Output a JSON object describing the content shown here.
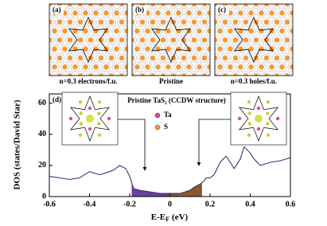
{
  "chart_data": {
    "type": "line",
    "ylabel": "DOS (states/David Star)",
    "xlabel": {
      "main": "E-E",
      "sub": "F",
      "unit": "(eV)"
    },
    "xlim": [
      -0.6,
      0.6
    ],
    "xticks": [
      -0.6,
      -0.4,
      -0.2,
      0.0,
      0.2,
      0.4,
      0.6
    ],
    "ylim": [
      0,
      66
    ],
    "yticks": [
      0,
      20,
      40,
      60
    ],
    "series": [
      {
        "color": "#4b2a7a",
        "x": [
          -0.6,
          -0.55,
          -0.5,
          -0.45,
          -0.4,
          -0.35,
          -0.3,
          -0.28,
          -0.25,
          -0.22,
          -0.2,
          -0.19,
          -0.18,
          -0.15,
          -0.1,
          -0.05,
          0,
          0.05,
          0.1,
          0.12,
          0.15,
          0.17,
          0.18,
          0.2,
          0.22,
          0.25,
          0.28,
          0.3,
          0.32,
          0.35,
          0.37,
          0.4,
          0.42,
          0.45,
          0.5,
          0.55,
          0.6
        ],
        "values": [
          13,
          12,
          11,
          12,
          16,
          14,
          16,
          17,
          20,
          18,
          13,
          9,
          5,
          4,
          3,
          2,
          2,
          2,
          4,
          6,
          8,
          10,
          12,
          12,
          14,
          22,
          26,
          22,
          18,
          24,
          32,
          28,
          24,
          20,
          22,
          23,
          25
        ]
      }
    ],
    "fills": [
      {
        "xrange": [
          -0.19,
          0.0
        ],
        "color": "#6a3fa0"
      },
      {
        "xrange": [
          0.0,
          0.16
        ],
        "color": "#8b5a2b"
      }
    ],
    "panels": [
      {
        "tag": "(a)",
        "caption": "n=0.3 electrons/f.u."
      },
      {
        "tag": "(b)",
        "caption": "Pristine"
      },
      {
        "tag": "(c)",
        "caption": "n=0.3 holes/f.u."
      }
    ],
    "inset": {
      "tag": "(d)",
      "title": "Pristine TaS₂ (CCDW structure)",
      "legend": [
        {
          "name": "Ta",
          "color": "#d0509a"
        },
        {
          "name": "S",
          "color": "#f0a040"
        }
      ]
    }
  }
}
